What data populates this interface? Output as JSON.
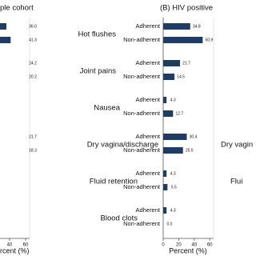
{
  "chart_data": [
    {
      "type": "hbar",
      "title": "ple cohort",
      "xlabel": "rcent (%)",
      "series": [
        {
          "name": "Adherent",
          "color": "#1f3d63",
          "values": [
            36.0,
            24.2,
            null,
            21.7,
            null,
            null
          ],
          "value_labels": [
            "36.0",
            "24.2",
            null,
            "21.7",
            null,
            null
          ]
        },
        {
          "name": "Non-adherent",
          "color": "#1f3d63",
          "values": [
            41.3,
            20.2,
            null,
            18.3,
            null,
            null
          ],
          "value_labels": [
            "41.3",
            "20.2",
            null,
            "18.3",
            null,
            null
          ]
        }
      ],
      "xlim": [
        0,
        65
      ],
      "xticks": [
        40,
        60
      ]
    },
    {
      "type": "hbar",
      "title": "(B) HIV positive",
      "xlabel": "Percent (%)",
      "categories": [
        "Hot flushes",
        "Joint pains",
        "Nausea",
        "Dry vagina/discharge",
        "Fluid retention",
        "Blood clots"
      ],
      "series": [
        {
          "name": "Adherent",
          "color": "#1f3d63",
          "values": [
            34.8,
            21.7,
            4.3,
            30.4,
            4.3,
            4.3
          ],
          "value_labels": [
            "34.8",
            "21.7",
            "4.3",
            "30.4",
            "4.3",
            "4.3"
          ]
        },
        {
          "name": "Non-adherent",
          "color": "#1f3d63",
          "values": [
            50.9,
            14.5,
            12.7,
            25.5,
            5.5,
            0.0
          ],
          "value_labels": [
            "50.9",
            "14.5",
            "12.7",
            "25.5",
            "5.5",
            "0.0"
          ]
        }
      ],
      "xlim": [
        0,
        65
      ],
      "xticks": [
        0,
        20,
        40,
        60
      ]
    },
    {
      "type": "hbar",
      "categories": [
        "Dry vagin",
        "Flui"
      ]
    }
  ]
}
